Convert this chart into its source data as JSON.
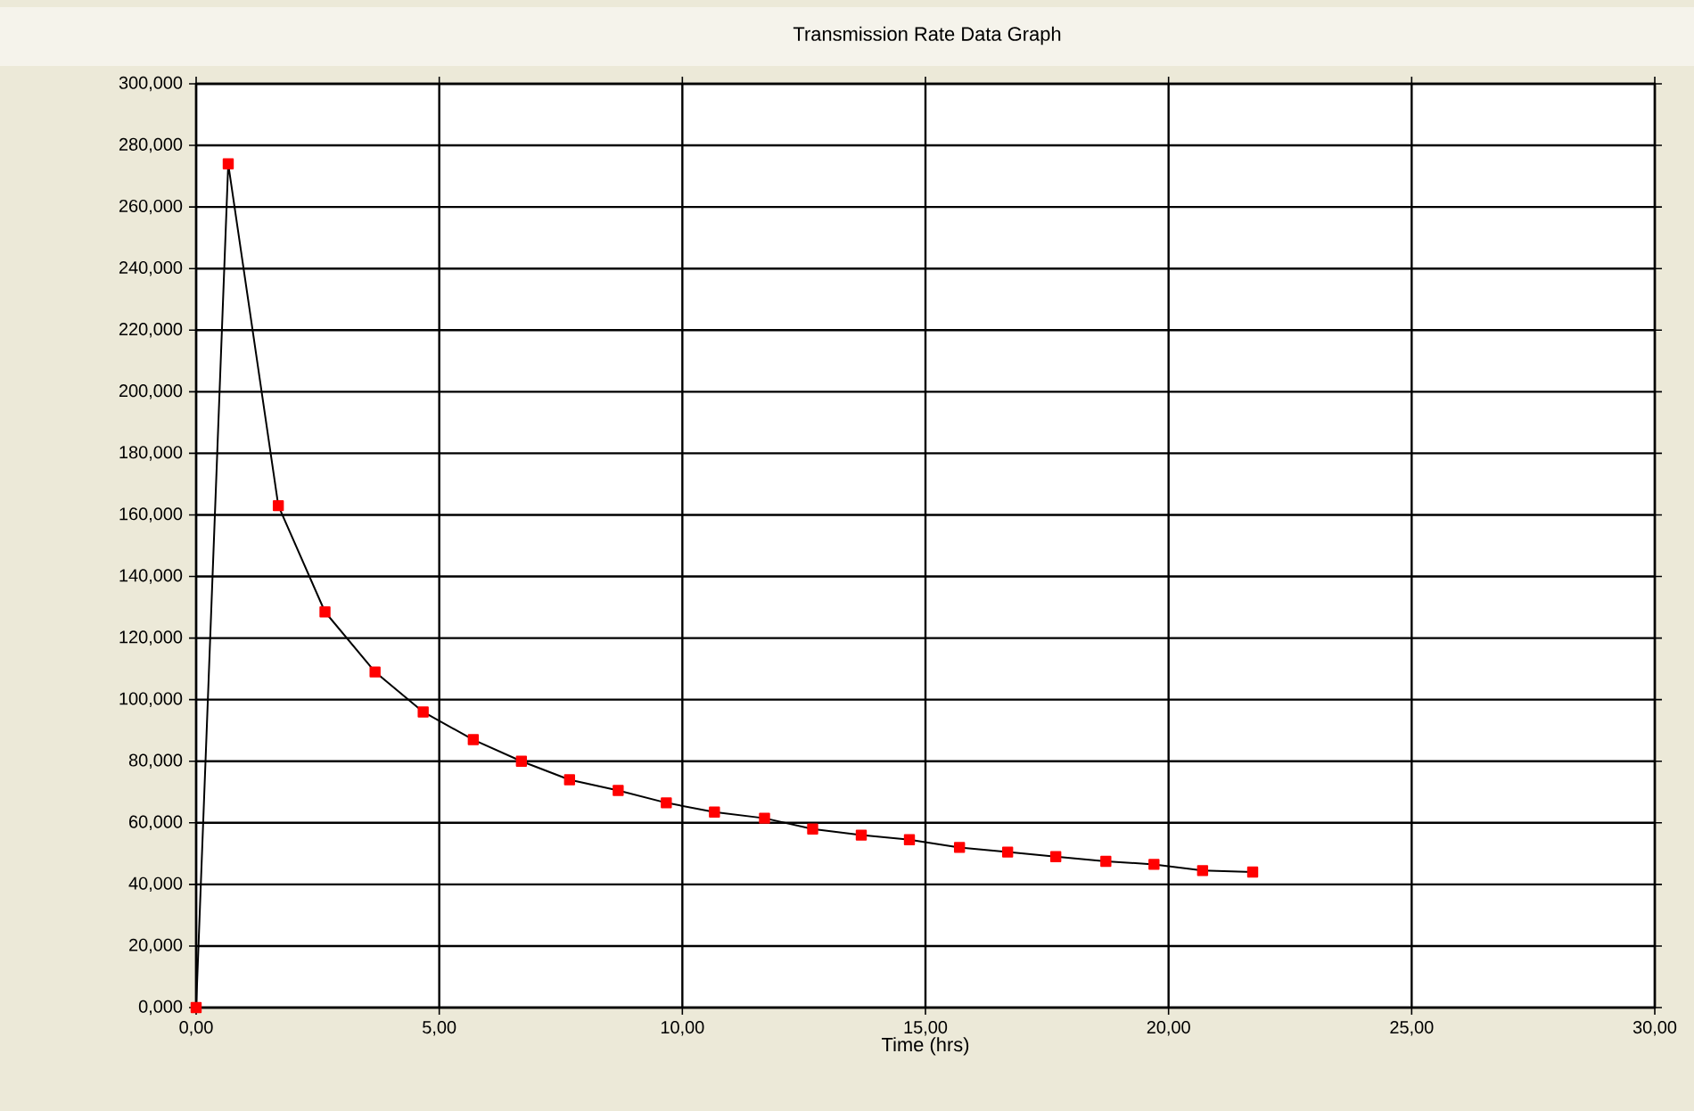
{
  "chart_data": {
    "type": "line",
    "title": "Transmission Rate Data Graph",
    "xlabel": "Time (hrs)",
    "x": [
      0,
      0.66,
      1.69,
      2.65,
      3.68,
      4.67,
      5.7,
      6.69,
      7.68,
      8.68,
      9.67,
      10.66,
      11.69,
      12.68,
      13.68,
      14.67,
      15.7,
      16.69,
      17.68,
      18.71,
      19.7,
      20.7,
      21.73
    ],
    "series": [
      {
        "color": "#ff0000",
        "values": [
          0,
          274,
          163,
          128.5,
          109,
          96,
          87,
          80,
          74,
          70.5,
          66.5,
          63.5,
          61.5,
          58,
          56,
          54.5,
          52,
          50.5,
          49,
          47.5,
          46.5,
          44.5,
          44
        ]
      }
    ],
    "xlim": [
      0,
      30
    ],
    "xticks": [
      {
        "value": 0,
        "label": "0,00"
      },
      {
        "value": 5,
        "label": "5,00"
      },
      {
        "value": 10,
        "label": "10,00"
      },
      {
        "value": 15,
        "label": "15,00"
      },
      {
        "value": 20,
        "label": "20,00"
      },
      {
        "value": 25,
        "label": "25,00"
      },
      {
        "value": 30,
        "label": "30,00"
      }
    ],
    "ylim": [
      0,
      300
    ],
    "yticks": [
      {
        "value": 0,
        "label": "0,000"
      },
      {
        "value": 20,
        "label": "20,000"
      },
      {
        "value": 40,
        "label": "40,000"
      },
      {
        "value": 60,
        "label": "60,000"
      },
      {
        "value": 80,
        "label": "80,000"
      },
      {
        "value": 100,
        "label": "100,000"
      },
      {
        "value": 120,
        "label": "120,000"
      },
      {
        "value": 140,
        "label": "140,000"
      },
      {
        "value": 160,
        "label": "160,000"
      },
      {
        "value": 180,
        "label": "180,000"
      },
      {
        "value": 200,
        "label": "200,000"
      },
      {
        "value": 220,
        "label": "220,000"
      },
      {
        "value": 240,
        "label": "240,000"
      },
      {
        "value": 260,
        "label": "260,000"
      },
      {
        "value": 280,
        "label": "280,000"
      },
      {
        "value": 300,
        "label": "300,000"
      }
    ],
    "grid": true,
    "marker": "square",
    "line_style": "solid"
  }
}
